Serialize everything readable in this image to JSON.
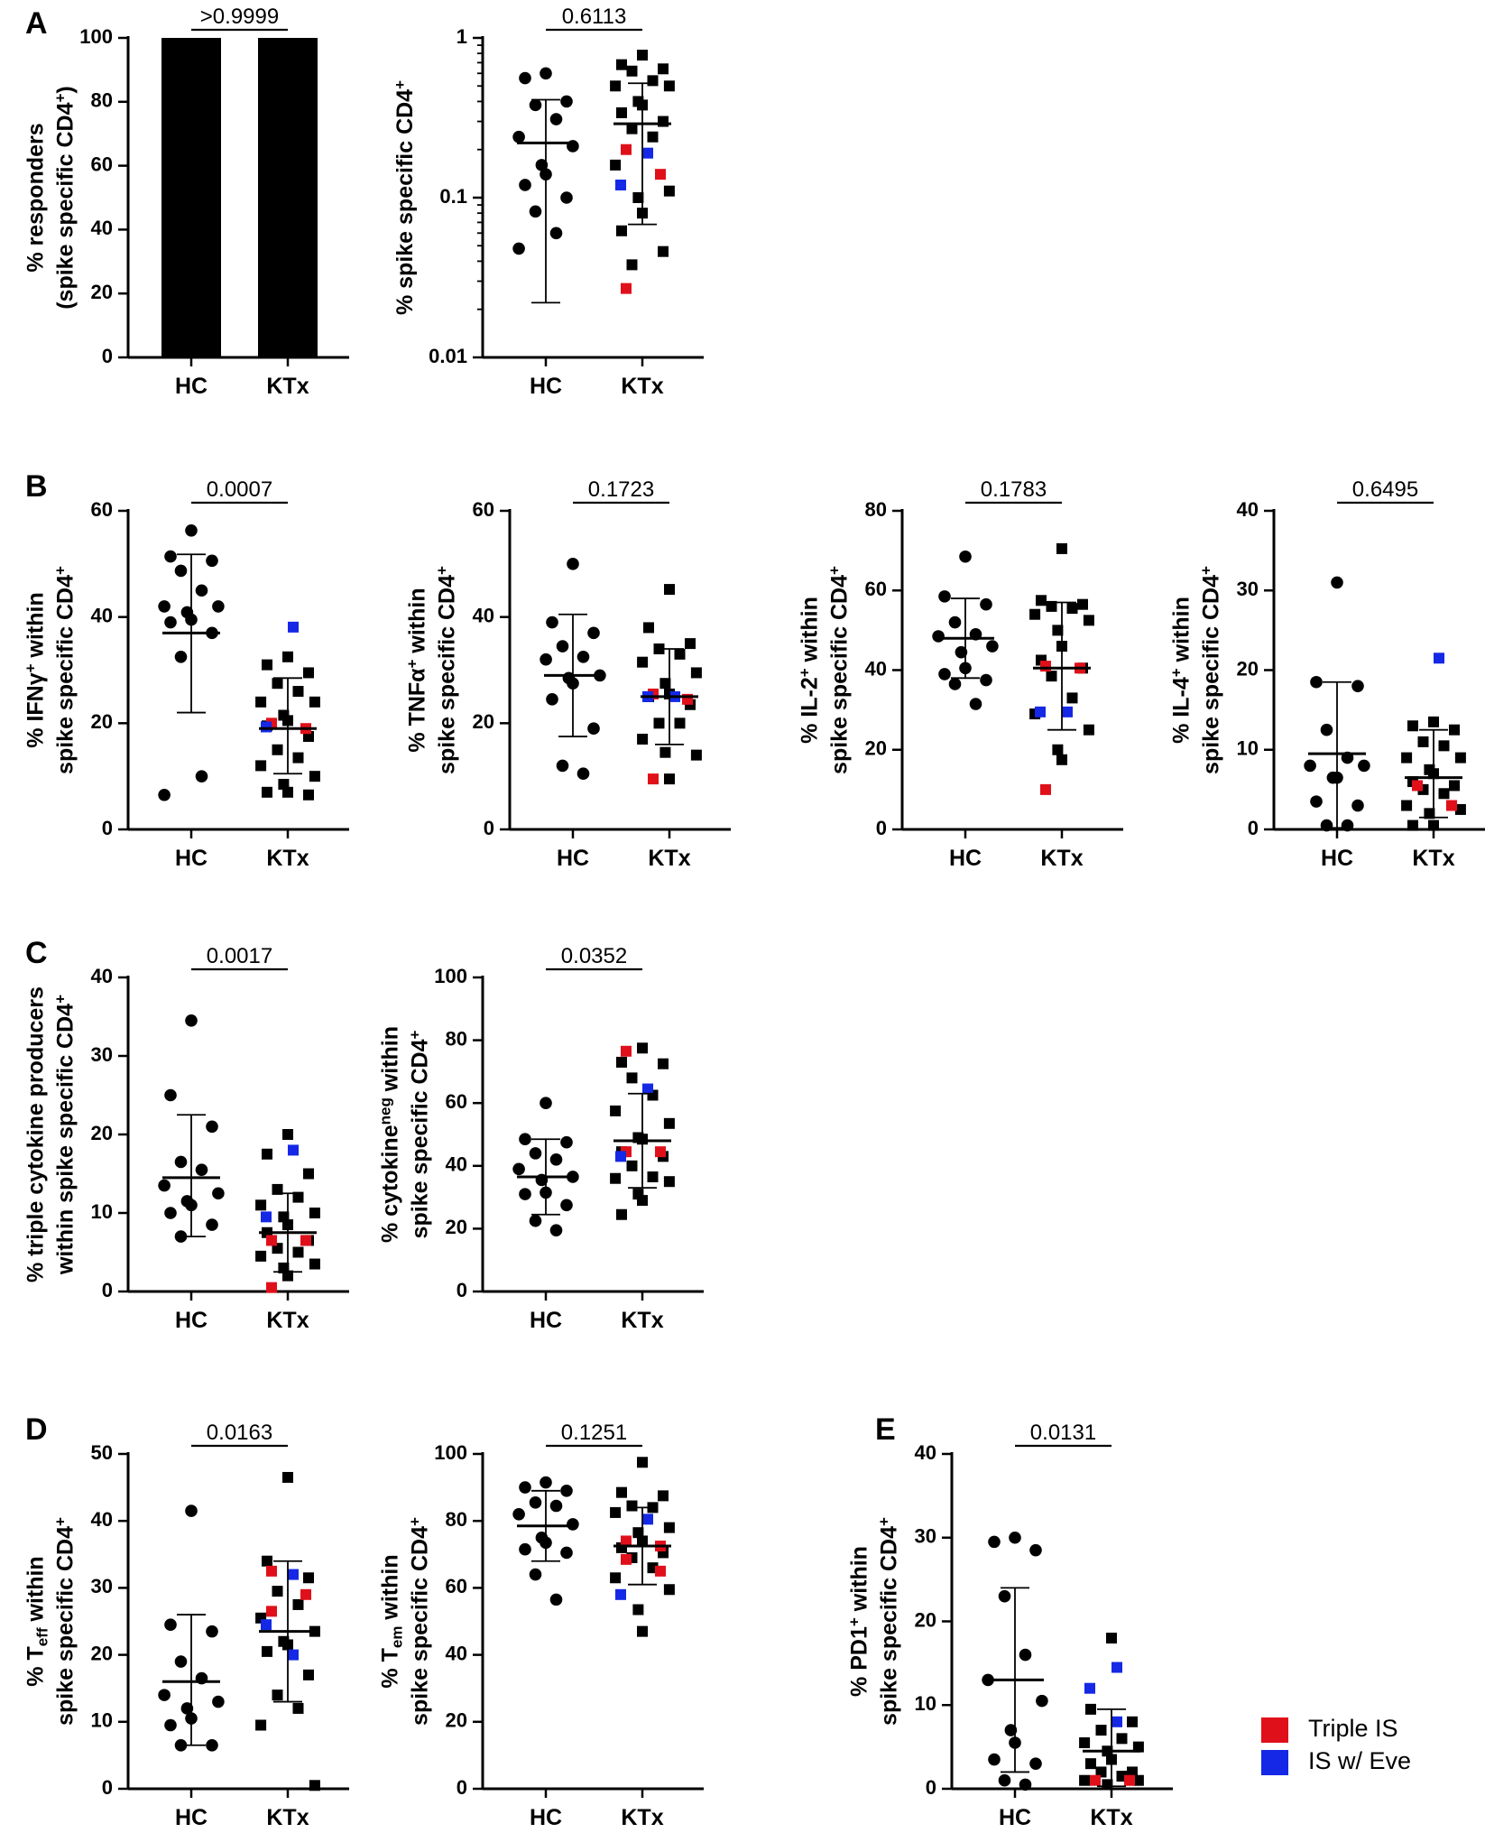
{
  "colors": {
    "hc": "#000000",
    "ktx": "#000000",
    "triple_is": "#e0101a",
    "is_eve": "#1428e6"
  },
  "chart_data": [
    {
      "id": "A1",
      "panel": "A",
      "type": "bar",
      "categories": [
        "HC",
        "KTx"
      ],
      "values": [
        100,
        100
      ],
      "ylabel_lines": [
        [
          "% responders"
        ],
        [
          "(spike specific CD4",
          "+",
          ")"
        ]
      ],
      "yticks": [
        "0",
        "20",
        "40",
        "60",
        "80",
        "100"
      ],
      "ylim": [
        0,
        100
      ],
      "pvalue": ">0.9999"
    },
    {
      "id": "A2",
      "type": "scatter",
      "scale": "log",
      "categories": [
        "HC",
        "KTx"
      ],
      "ylabel_lines": [
        [
          "% spike specific CD4",
          "+",
          ""
        ]
      ],
      "yticks": [
        "0.01",
        "0.1",
        "1"
      ],
      "ylim": [
        0.01,
        1
      ],
      "pvalue": "0.6113",
      "hc": [
        0.6,
        0.56,
        0.4,
        0.38,
        0.31,
        0.24,
        0.21,
        0.16,
        0.14,
        0.12,
        0.1,
        0.082,
        0.06,
        0.048
      ],
      "hc_mean": 0.22,
      "hc_err": [
        0.022,
        0.41
      ],
      "ktx": [
        0.78,
        0.68,
        0.64,
        0.62,
        0.54,
        0.5,
        0.5,
        0.4,
        0.38,
        0.34,
        0.3,
        0.27,
        0.24,
        0.16,
        0.11,
        0.1,
        0.08,
        0.062,
        0.046,
        0.038
      ],
      "ktx_red": [
        0.2,
        0.14,
        0.027
      ],
      "ktx_blue": [
        0.19,
        0.12
      ],
      "ktx_mean": 0.29,
      "ktx_err": [
        0.068,
        0.52
      ]
    },
    {
      "id": "B1",
      "panel": "B",
      "type": "scatter",
      "categories": [
        "HC",
        "KTx"
      ],
      "ylabel_lines": [
        [
          "% IFNγ",
          "+",
          " within"
        ],
        [
          "spike specific CD4",
          "+",
          ""
        ]
      ],
      "yticks": [
        "0",
        "20",
        "40",
        "60"
      ],
      "ylim": [
        0,
        60
      ],
      "pvalue": "0.0007",
      "hc": [
        56.3,
        51.4,
        50.6,
        48.7,
        45.0,
        42.0,
        42.0,
        40.9,
        39.5,
        39.0,
        37.0,
        32.5,
        10.0,
        6.5
      ],
      "hc_mean": 37.0,
      "hc_err": [
        22.0,
        51.8
      ],
      "ktx": [
        32.5,
        31.0,
        29.5,
        27.5,
        26.0,
        24.0,
        24.0,
        21.5,
        20.5,
        19.5,
        17.5,
        15.0,
        13.5,
        12.0,
        10.0,
        8.5,
        7.0,
        7.0,
        6.5
      ],
      "ktx_red": [
        20.0,
        19.0
      ],
      "ktx_blue": [
        38.1,
        19.3
      ],
      "ktx_mean": 19.0,
      "ktx_err": [
        10.5,
        28.5
      ]
    },
    {
      "id": "B2",
      "type": "scatter",
      "categories": [
        "HC",
        "KTx"
      ],
      "ylabel_lines": [
        [
          "% TNFα",
          "+",
          " within"
        ],
        [
          "spike specific CD4",
          "+",
          ""
        ]
      ],
      "yticks": [
        "0",
        "20",
        "40",
        "60"
      ],
      "ylim": [
        0,
        60
      ],
      "pvalue": "0.1723",
      "hc": [
        50.0,
        39.0,
        37.0,
        34.5,
        32.5,
        32.0,
        29.0,
        28.5,
        27.5,
        24.5,
        19.0,
        12.0,
        10.5
      ],
      "hc_mean": 29.0,
      "hc_err": [
        17.5,
        40.5
      ],
      "ktx": [
        45.2,
        38.0,
        35.0,
        34.0,
        33.0,
        31.5,
        29.5,
        27.5,
        25.5,
        25.0,
        23.5,
        20.0,
        20.0,
        17.0,
        14.0,
        14.5,
        9.5
      ],
      "ktx_red": [
        25.5,
        24.5,
        9.5
      ],
      "ktx_blue": [
        25.0,
        25.0
      ],
      "ktx_mean": 25.0,
      "ktx_err": [
        16.0,
        34.0
      ]
    },
    {
      "id": "B3",
      "type": "scatter",
      "categories": [
        "HC",
        "KTx"
      ],
      "ylabel_lines": [
        [
          "% IL-2",
          "+",
          " within"
        ],
        [
          "spike specific CD4",
          "+",
          ""
        ]
      ],
      "yticks": [
        "0",
        "20",
        "40",
        "60",
        "80"
      ],
      "ylim": [
        0,
        80
      ],
      "pvalue": "0.1783",
      "hc": [
        68.5,
        58.5,
        56.5,
        52.0,
        49.0,
        48.5,
        46.0,
        44.5,
        40.5,
        39.0,
        37.5,
        36.5,
        31.5
      ],
      "hc_mean": 48.0,
      "hc_err": [
        38.0,
        58.0
      ],
      "ktx": [
        70.5,
        57.5,
        56.5,
        56.0,
        55.5,
        54.0,
        52.5,
        50.0,
        46.0,
        42.5,
        40.5,
        38.5,
        33.0,
        29.0,
        25.0,
        20.0,
        17.5
      ],
      "ktx_red": [
        41.0,
        40.5,
        10.0
      ],
      "ktx_blue": [
        29.5,
        29.5
      ],
      "ktx_mean": 40.5,
      "ktx_err": [
        25.0,
        57.0
      ]
    },
    {
      "id": "B4",
      "type": "scatter",
      "categories": [
        "HC",
        "KTx"
      ],
      "ylabel_lines": [
        [
          "% IL-4",
          "+",
          " within"
        ],
        [
          "spike specific CD4",
          "+",
          ""
        ]
      ],
      "yticks": [
        "0",
        "10",
        "20",
        "30",
        "40"
      ],
      "ylim": [
        0,
        40
      ],
      "pvalue": "0.6495",
      "hc": [
        31.0,
        18.5,
        18.0,
        12.5,
        9.0,
        8.0,
        8.0,
        6.5,
        6.5,
        3.5,
        3.0,
        0.5,
        0.5
      ],
      "hc_mean": 9.5,
      "hc_err": [
        0.2,
        18.5
      ],
      "ktx": [
        13.5,
        13.0,
        12.5,
        11.0,
        10.5,
        9.0,
        9.0,
        7.5,
        7.0,
        6.0,
        5.5,
        5.0,
        4.5,
        3.0,
        2.5,
        2.0,
        0.5,
        0.5
      ],
      "ktx_red": [
        5.5,
        3.0
      ],
      "ktx_blue": [
        21.5
      ],
      "ktx_mean": 6.5,
      "ktx_err": [
        1.5,
        12.5
      ]
    },
    {
      "id": "C1",
      "panel": "C",
      "type": "scatter",
      "categories": [
        "HC",
        "KTx"
      ],
      "ylabel_lines": [
        [
          "% triple cytokine producers"
        ],
        [
          "within spike specific CD4",
          "+",
          ""
        ]
      ],
      "yticks": [
        "0",
        "10",
        "20",
        "30",
        "40"
      ],
      "ylim": [
        0,
        40
      ],
      "pvalue": "0.0017",
      "hc": [
        34.5,
        25.0,
        21.0,
        16.5,
        15.5,
        13.5,
        12.5,
        11.5,
        11.0,
        10.0,
        8.5,
        7.0
      ],
      "hc_mean": 14.5,
      "hc_err": [
        7.0,
        22.5
      ],
      "ktx": [
        20.0,
        17.5,
        15.0,
        13.0,
        12.0,
        11.0,
        10.0,
        9.5,
        8.5,
        7.5,
        6.5,
        5.5,
        5.0,
        4.5,
        3.5,
        3.0,
        2.0
      ],
      "ktx_red": [
        6.5,
        6.5,
        0.5
      ],
      "ktx_blue": [
        18.0,
        9.5
      ],
      "ktx_mean": 7.5,
      "ktx_err": [
        2.5,
        12.5
      ]
    },
    {
      "id": "C2",
      "type": "scatter",
      "categories": [
        "HC",
        "KTx"
      ],
      "ylabel_lines": [
        [
          "% cytokine",
          "neg",
          " within"
        ],
        [
          "spike specific CD4",
          "+",
          ""
        ]
      ],
      "yticks": [
        "0",
        "20",
        "40",
        "60",
        "80",
        "100"
      ],
      "ylim": [
        0,
        100
      ],
      "pvalue": "0.0352",
      "hc": [
        60.0,
        48.5,
        47.5,
        44.0,
        42.0,
        39.0,
        36.5,
        35.5,
        31.5,
        31.0,
        27.5,
        22.5,
        19.5
      ],
      "hc_mean": 36.5,
      "hc_err": [
        24.5,
        48.5
      ],
      "ktx": [
        77.5,
        73.0,
        72.5,
        68.0,
        62.5,
        57.5,
        53.5,
        49.0,
        48.5,
        44.5,
        43.0,
        40.0,
        36.5,
        36.0,
        35.0,
        31.0,
        29.0,
        24.5
      ],
      "ktx_red": [
        76.5,
        44.5,
        44.5
      ],
      "ktx_blue": [
        64.5,
        43.0
      ],
      "ktx_mean": 48.0,
      "ktx_err": [
        33.0,
        63.0
      ]
    },
    {
      "id": "D1",
      "panel": "D",
      "type": "scatter",
      "categories": [
        "HC",
        "KTx"
      ],
      "ylabel_lines": [
        [
          "% T",
          "eff",
          " within"
        ],
        [
          "spike specific CD4",
          "+",
          ""
        ]
      ],
      "yticks": [
        "0",
        "10",
        "20",
        "30",
        "40",
        "50"
      ],
      "ylim": [
        0,
        50
      ],
      "pvalue": "0.0163",
      "hc": [
        41.5,
        24.5,
        23.5,
        19.0,
        16.5,
        14.0,
        13.0,
        12.0,
        10.5,
        9.5,
        6.5,
        6.5
      ],
      "hc_mean": 16.0,
      "hc_err": [
        6.5,
        26.0
      ],
      "ktx": [
        46.5,
        34.0,
        31.5,
        29.5,
        27.5,
        25.5,
        23.5,
        22.0,
        21.5,
        20.5,
        17.0,
        14.0,
        12.0,
        9.5,
        0.5
      ],
      "ktx_red": [
        32.5,
        29.0,
        26.5
      ],
      "ktx_blue": [
        32.0,
        24.5,
        20.0
      ],
      "ktx_mean": 23.5,
      "ktx_err": [
        13.0,
        34.0
      ]
    },
    {
      "id": "D2",
      "type": "scatter",
      "categories": [
        "HC",
        "KTx"
      ],
      "ylabel_lines": [
        [
          "% T",
          "em",
          " within"
        ],
        [
          "spike specific CD4",
          "+",
          ""
        ]
      ],
      "yticks": [
        "0",
        "20",
        "40",
        "60",
        "80",
        "100"
      ],
      "ylim": [
        0,
        100
      ],
      "pvalue": "0.1251",
      "hc": [
        91.5,
        90.0,
        89.0,
        85.5,
        84.5,
        82.0,
        79.0,
        75.0,
        73.5,
        71.5,
        70.5,
        64.0,
        56.5
      ],
      "hc_mean": 78.5,
      "hc_err": [
        68.0,
        89.0
      ],
      "ktx": [
        97.5,
        88.5,
        87.5,
        84.5,
        84.0,
        82.5,
        78.0,
        76.5,
        74.0,
        72.0,
        70.5,
        69.0,
        66.0,
        63.0,
        59.5,
        53.5,
        47.0
      ],
      "ktx_red": [
        74.0,
        72.5,
        68.5,
        65.0
      ],
      "ktx_blue": [
        80.5,
        58.0
      ],
      "ktx_mean": 72.5,
      "ktx_err": [
        61.0,
        84.0
      ]
    },
    {
      "id": "E1",
      "panel": "E",
      "type": "scatter",
      "categories": [
        "HC",
        "KTx"
      ],
      "ylabel_lines": [
        [
          "% PD1",
          "+",
          " within"
        ],
        [
          "spike specific CD4",
          "+",
          ""
        ]
      ],
      "yticks": [
        "0",
        "10",
        "20",
        "30",
        "40"
      ],
      "ylim": [
        0,
        40
      ],
      "pvalue": "0.0131",
      "hc": [
        30.0,
        29.5,
        28.5,
        23.0,
        16.0,
        13.0,
        10.5,
        7.0,
        5.5,
        3.5,
        3.0,
        1.0,
        0.5
      ],
      "hc_mean": 13.0,
      "hc_err": [
        2.0,
        24.0
      ],
      "ktx": [
        18.0,
        9.5,
        8.0,
        7.0,
        6.0,
        5.5,
        5.0,
        4.5,
        3.5,
        3.0,
        2.0,
        2.0,
        1.5,
        1.0,
        1.0,
        0.5
      ],
      "ktx_red": [
        1.0,
        1.0
      ],
      "ktx_blue": [
        14.5,
        12.0,
        8.0
      ],
      "ktx_mean": 4.5,
      "ktx_err": [
        0.3,
        9.5
      ]
    }
  ],
  "legend": [
    {
      "label": "Triple IS",
      "color": "#e0101a"
    },
    {
      "label": "IS w/ Eve",
      "color": "#1428e6"
    }
  ]
}
